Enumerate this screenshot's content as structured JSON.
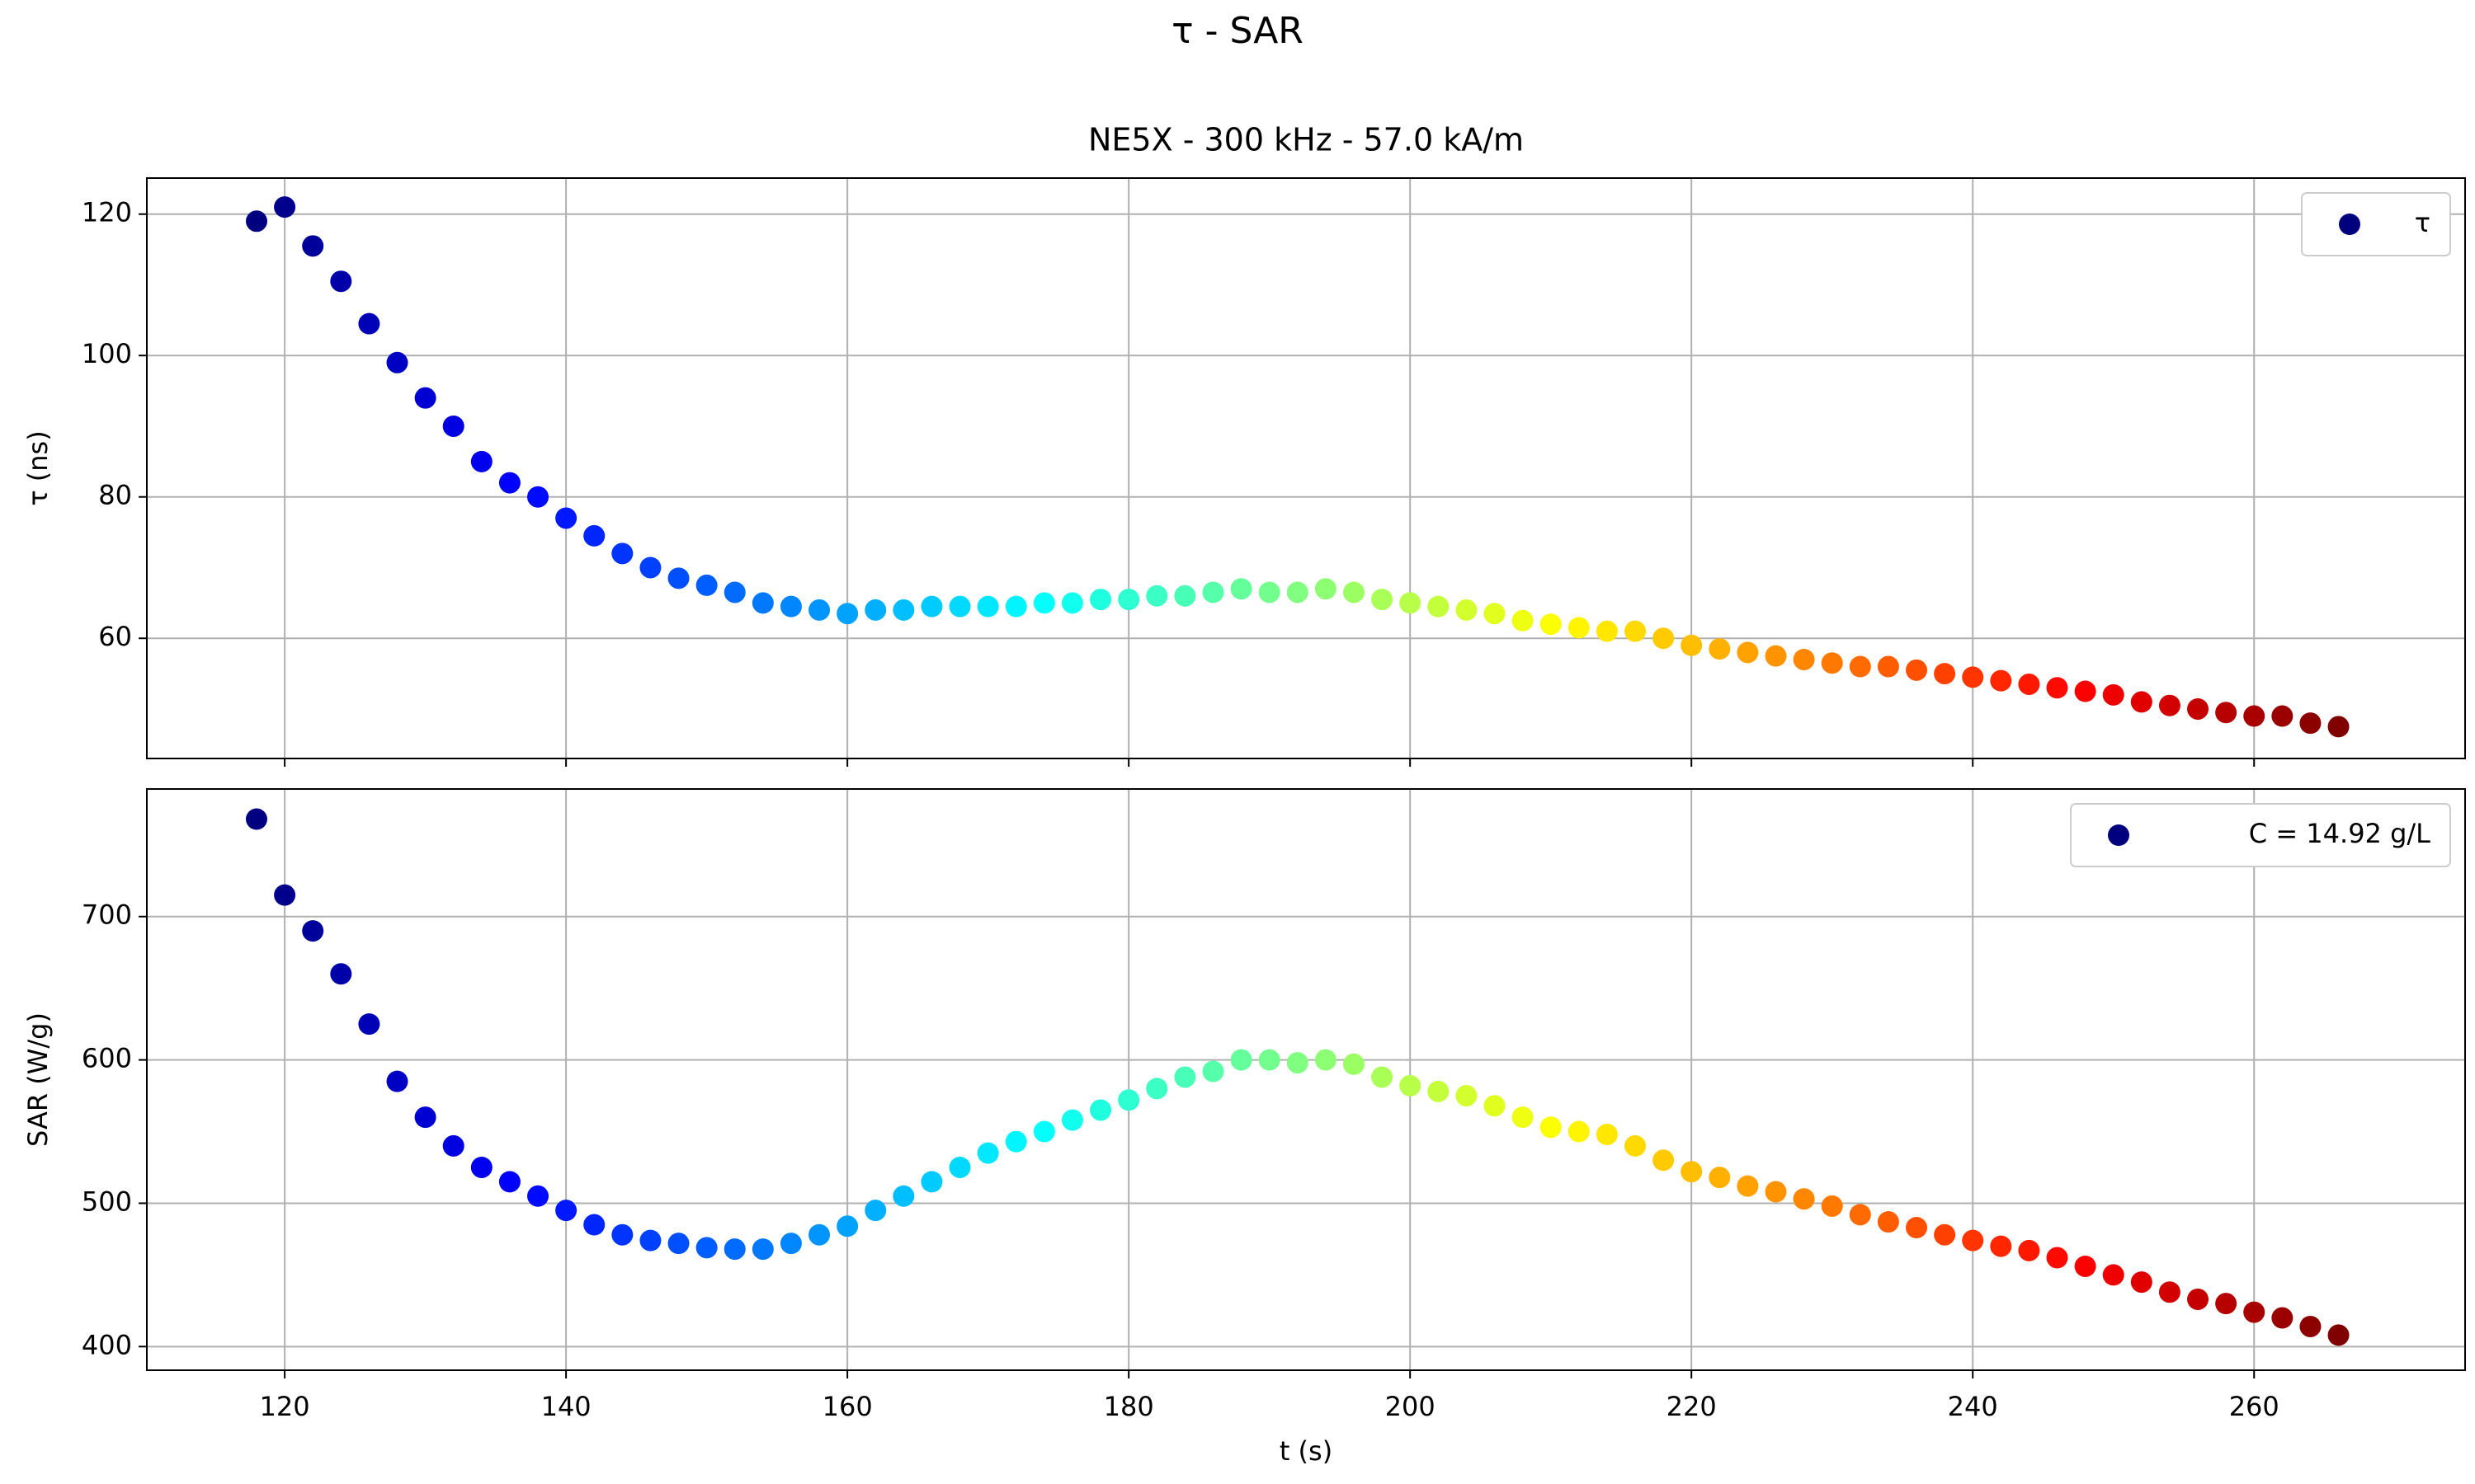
{
  "title": "τ - SAR",
  "chart_data": [
    {
      "type": "scatter",
      "title": "NE5X - 300 kHz - 57.0 kA/m",
      "y_label": "τ (ns)",
      "xlim": [
        110.2,
        275.0
      ],
      "xticks": [
        120,
        140,
        160,
        180,
        200,
        220,
        240,
        260
      ],
      "ylim": [
        43,
        125.1
      ],
      "yticks": [
        60,
        80,
        100,
        120
      ],
      "grid": true,
      "colormap": "jet",
      "legend": "upper right",
      "legend_color": "#00007f",
      "series": [
        {
          "name": "τ",
          "x": [
            118,
            120,
            122,
            124,
            126,
            128,
            130,
            132,
            134,
            136,
            138,
            140,
            142,
            144,
            146,
            148,
            150,
            152,
            154,
            156,
            158,
            160,
            162,
            164,
            166,
            168,
            170,
            172,
            174,
            176,
            178,
            180,
            182,
            184,
            186,
            188,
            190,
            192,
            194,
            196,
            198,
            200,
            202,
            204,
            206,
            208,
            210,
            212,
            214,
            216,
            218,
            220,
            222,
            224,
            226,
            228,
            230,
            232,
            234,
            236,
            238,
            240,
            242,
            244,
            246,
            248,
            250,
            252,
            254,
            256,
            258,
            260,
            262,
            264,
            266
          ],
          "values": [
            119,
            121,
            115.5,
            110.5,
            104.5,
            99,
            94,
            90,
            85,
            82,
            80,
            77,
            74.5,
            72,
            70,
            68.5,
            67.5,
            66.5,
            65,
            64.5,
            64,
            63.5,
            64,
            64,
            64.5,
            64.5,
            64.5,
            64.5,
            65,
            65,
            65.5,
            65.5,
            66,
            66,
            66.5,
            67,
            66.5,
            66.5,
            67,
            66.5,
            65.5,
            65,
            64.5,
            64,
            63.5,
            62.5,
            62,
            61.5,
            61,
            61,
            60,
            59,
            58.5,
            58,
            57.5,
            57,
            56.5,
            56,
            56,
            55.5,
            55,
            54.5,
            54,
            53.5,
            53,
            52.5,
            52,
            51,
            50.5,
            50,
            49.5,
            49,
            49,
            48,
            47.5
          ]
        }
      ]
    },
    {
      "type": "scatter",
      "x_label": "t (s)",
      "y_label": "SAR (W/g)",
      "xlim": [
        110.2,
        275.0
      ],
      "xticks": [
        120,
        140,
        160,
        180,
        200,
        220,
        240,
        260
      ],
      "ylim": [
        383.5,
        789
      ],
      "yticks": [
        400,
        500,
        600,
        700
      ],
      "grid": true,
      "colormap": "jet",
      "legend": "upper right",
      "legend_color": "#00007f",
      "series": [
        {
          "name": "C = 14.92 g/L",
          "x": [
            118,
            120,
            122,
            124,
            126,
            128,
            130,
            132,
            134,
            136,
            138,
            140,
            142,
            144,
            146,
            148,
            150,
            152,
            154,
            156,
            158,
            160,
            162,
            164,
            166,
            168,
            170,
            172,
            174,
            176,
            178,
            180,
            182,
            184,
            186,
            188,
            190,
            192,
            194,
            196,
            198,
            200,
            202,
            204,
            206,
            208,
            210,
            212,
            214,
            216,
            218,
            220,
            222,
            224,
            226,
            228,
            230,
            232,
            234,
            236,
            238,
            240,
            242,
            244,
            246,
            248,
            250,
            252,
            254,
            256,
            258,
            260,
            262,
            264,
            266
          ],
          "values": [
            768,
            715,
            690,
            660,
            625,
            585,
            560,
            540,
            525,
            515,
            505,
            495,
            485,
            478,
            474,
            472,
            469,
            468,
            468,
            472,
            478,
            484,
            495,
            505,
            515,
            525,
            535,
            543,
            550,
            558,
            565,
            572,
            580,
            588,
            592,
            600,
            600,
            598,
            600,
            597,
            588,
            582,
            578,
            575,
            568,
            560,
            553,
            550,
            548,
            540,
            530,
            522,
            518,
            512,
            508,
            503,
            498,
            492,
            487,
            483,
            478,
            474,
            470,
            467,
            462,
            456,
            450,
            445,
            438,
            433,
            430,
            424,
            420,
            414,
            408
          ]
        }
      ]
    }
  ]
}
